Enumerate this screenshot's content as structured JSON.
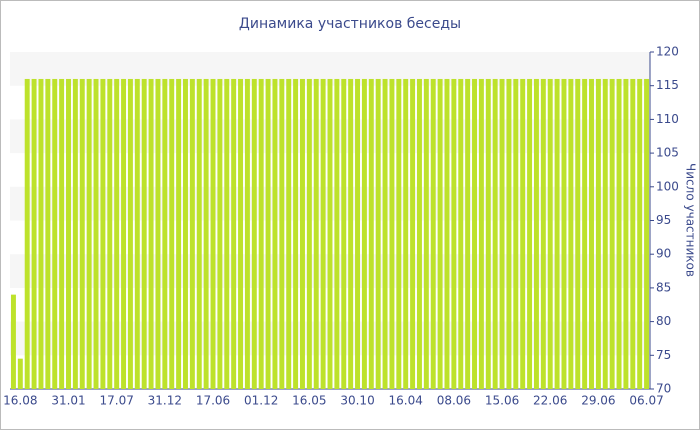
{
  "chart_data": {
    "type": "bar",
    "title": "Динамика участников беседы",
    "y_axis_label": "Число участников",
    "categories": [
      null,
      "16.08",
      null,
      null,
      null,
      null,
      null,
      null,
      "31.01",
      null,
      null,
      null,
      null,
      null,
      null,
      "17.07",
      null,
      null,
      null,
      null,
      null,
      null,
      "31.12",
      null,
      null,
      null,
      null,
      null,
      null,
      "17.06",
      null,
      null,
      null,
      null,
      null,
      null,
      "01.12",
      null,
      null,
      null,
      null,
      null,
      null,
      "16.05",
      null,
      null,
      null,
      null,
      null,
      null,
      "30.10",
      null,
      null,
      null,
      null,
      null,
      null,
      "16.04",
      null,
      null,
      null,
      null,
      null,
      null,
      "08.06",
      null,
      null,
      null,
      null,
      null,
      null,
      "15.06",
      null,
      null,
      null,
      null,
      null,
      null,
      "22.06",
      null,
      null,
      null,
      null,
      null,
      null,
      "29.06",
      null,
      null,
      null,
      null,
      null,
      null,
      "06.07"
    ],
    "values": [
      84,
      74.5,
      116,
      116,
      116,
      116,
      116,
      116,
      116,
      116,
      116,
      116,
      116,
      116,
      116,
      116,
      116,
      116,
      116,
      116,
      116,
      116,
      116,
      116,
      116,
      116,
      116,
      116,
      116,
      116,
      116,
      116,
      116,
      116,
      116,
      116,
      116,
      116,
      116,
      116,
      116,
      116,
      116,
      116,
      116,
      116,
      116,
      116,
      116,
      116,
      116,
      116,
      116,
      116,
      116,
      116,
      116,
      116,
      116,
      116,
      116,
      116,
      116,
      116,
      116,
      116,
      116,
      116,
      116,
      116,
      116,
      116,
      116,
      116,
      116,
      116,
      116,
      116,
      116,
      116,
      116,
      116,
      116,
      116,
      116,
      116,
      116,
      116,
      116,
      116,
      116,
      116,
      116
    ],
    "color": "#bde22b",
    "ylim": [
      70,
      120
    ],
    "yticks": [
      70,
      75,
      80,
      85,
      90,
      95,
      100,
      105,
      110,
      115,
      120
    ],
    "y_axis_side": "right",
    "grid": "bands"
  }
}
